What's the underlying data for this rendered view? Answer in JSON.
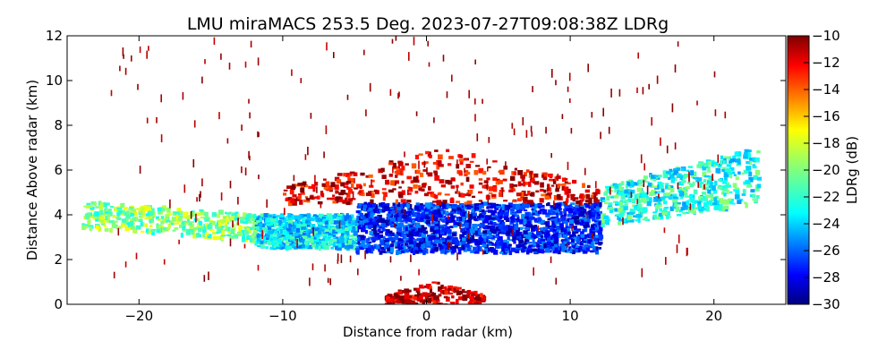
{
  "chart_data": {
    "type": "heatmap",
    "title": "LMU miraMACS 253.5 Deg. 2023-07-27T09:08:38Z  LDRg",
    "xlabel": "Distance from radar (km)",
    "ylabel": "Distance Above radar  (km)",
    "xlim": [
      -25,
      25
    ],
    "ylim": [
      0,
      12
    ],
    "x_ticks": [
      -20,
      -10,
      0,
      10,
      20
    ],
    "x_tick_labels": [
      "−20",
      "−10",
      "0",
      "10",
      "20"
    ],
    "y_ticks": [
      0,
      2,
      4,
      6,
      8,
      10,
      12
    ],
    "y_tick_labels": [
      "0",
      "2",
      "4",
      "6",
      "8",
      "10",
      "12"
    ],
    "colorbar": {
      "label": "LDRg (dB)",
      "vmin": -30,
      "vmax": -10,
      "colormap": "jet",
      "ticks": [
        -10,
        -12,
        -14,
        -16,
        -18,
        -20,
        -22,
        -24,
        -26,
        -28,
        -30
      ],
      "tick_labels": [
        "−10",
        "−12",
        "−14",
        "−16",
        "−18",
        "−20",
        "−22",
        "−24",
        "−26",
        "−28",
        "−30"
      ]
    },
    "regions": [
      {
        "name": "main cloud layer core",
        "x_range": [
          -5,
          12
        ],
        "height_range": [
          2.3,
          4.5
        ],
        "ldr_db": -27
      },
      {
        "name": "cloud layer left edge",
        "x_range": [
          -12,
          -5
        ],
        "height_range": [
          2.5,
          4.0
        ],
        "ldr_db": -23
      },
      {
        "name": "extended layer left",
        "x_range": [
          -24,
          -12
        ],
        "height_range": [
          2.7,
          4.5
        ],
        "ldr_db": -20
      },
      {
        "name": "extended layer right",
        "x_range": [
          12,
          23
        ],
        "height_range": [
          3.7,
          7.0
        ],
        "ldr_db": -22
      },
      {
        "name": "cloud top",
        "x_range": [
          -10,
          12
        ],
        "height_range": [
          4.5,
          7.0
        ],
        "ldr_db": -12
      },
      {
        "name": "near-radar clutter",
        "x_range": [
          -3,
          4
        ],
        "height_range": [
          0,
          1.0
        ],
        "ldr_db": -11
      },
      {
        "name": "sparse noise",
        "x_range": [
          -22,
          21
        ],
        "height_range": [
          1,
          12
        ],
        "ldr_db": -10
      }
    ]
  }
}
